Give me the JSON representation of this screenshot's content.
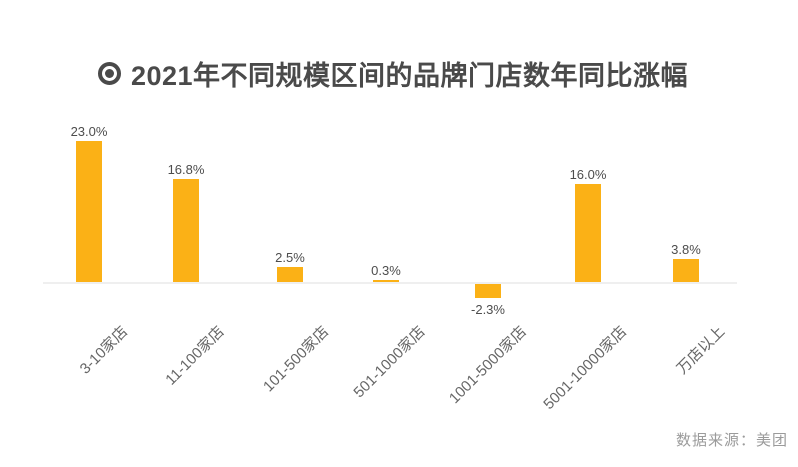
{
  "title": {
    "text": "2021年不同规模区间的品牌门店数年同比涨幅",
    "icon": "bullseye-icon"
  },
  "source": {
    "text": "数据来源：美团"
  },
  "colors": {
    "bar": "#FBB116",
    "title_text": "#4A4A4A",
    "value_label": "#4D4D4D",
    "category_label": "#666666",
    "source_text": "#9B9B9B",
    "axis_line": "#EFEFEF"
  },
  "chart_data": {
    "type": "bar",
    "title": "2021年不同规模区间的品牌门店数年同比涨幅",
    "categories": [
      "3-10家店",
      "11-100家店",
      "101-500家店",
      "501-1000家店",
      "1001-5000家店",
      "5001-10000家店",
      "万店以上"
    ],
    "values": [
      23.0,
      16.8,
      2.5,
      0.3,
      -2.3,
      16.0,
      3.8
    ],
    "value_labels": [
      "23.0%",
      "16.8%",
      "2.5%",
      "0.3%",
      "-2.3%",
      "16.0%",
      "3.8%"
    ],
    "unit": "%",
    "ylim": [
      -4,
      25
    ],
    "grid": false,
    "legend": false,
    "xlabel": "",
    "ylabel": "",
    "bar_color": "#FBB116",
    "source": "数据来源：美团"
  }
}
